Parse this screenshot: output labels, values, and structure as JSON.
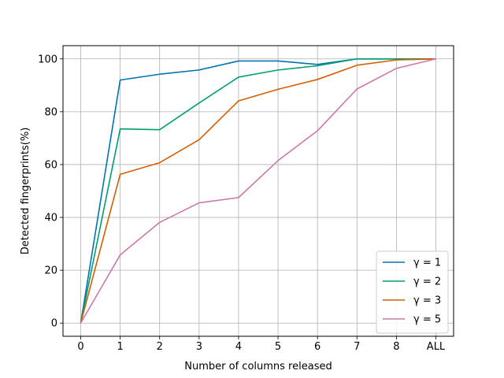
{
  "chart_data": {
    "type": "line",
    "title": "",
    "xlabel": "Number of columns released",
    "ylabel": "Detected fingerprints(%)",
    "categories": [
      "0",
      "1",
      "2",
      "3",
      "4",
      "5",
      "6",
      "7",
      "8",
      "ALL"
    ],
    "ylim": [
      -5,
      105
    ],
    "yticks": [
      0,
      20,
      40,
      60,
      80,
      100
    ],
    "grid": true,
    "legend_position": "lower-right",
    "series": [
      {
        "name": "γ = 1",
        "color": "#0072B2",
        "values": [
          0,
          92,
          94.2,
          95.8,
          99.2,
          99.2,
          97.9,
          100,
          100,
          100
        ]
      },
      {
        "name": "γ = 2",
        "color": "#009E73",
        "values": [
          0,
          73.5,
          73.2,
          83.3,
          93.1,
          95.8,
          97.4,
          100,
          100,
          100
        ]
      },
      {
        "name": "γ = 3",
        "color": "#D55E00",
        "values": [
          0,
          56.3,
          60.7,
          69.4,
          84.1,
          88.5,
          92.2,
          97.6,
          99.6,
          100
        ]
      },
      {
        "name": "γ = 5",
        "color": "#CC79A7",
        "values": [
          0,
          25.8,
          38.1,
          45.5,
          47.5,
          61.5,
          72.8,
          88.6,
          96.4,
          100
        ]
      }
    ]
  }
}
